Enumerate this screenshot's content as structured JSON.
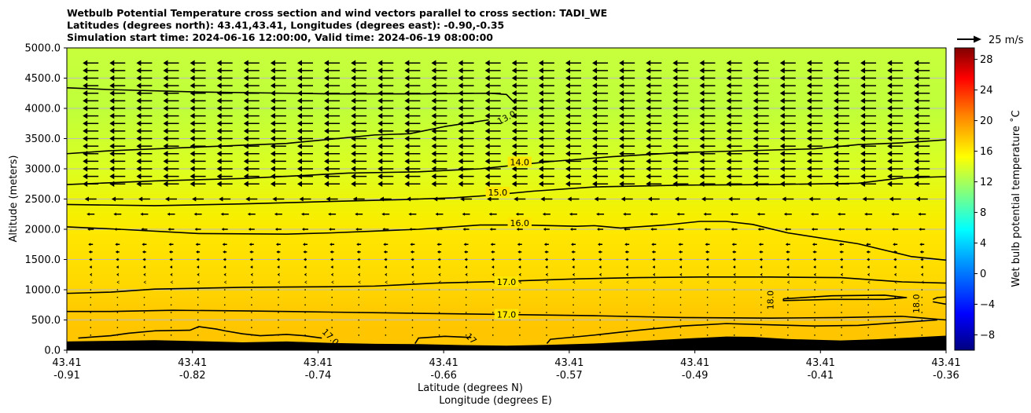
{
  "chart_data": {
    "type": "contour",
    "title_lines": [
      "Wetbulb Potential Temperature cross section and wind vectors parallel to cross section: TADI_WE",
      "Latitudes (degrees north): 43.41,43.41, Longitudes (degrees east): -0.90,-0.35",
      "Simulation start time: 2024-06-16 12:00:00, Valid time: 2024-06-19 08:00:00"
    ],
    "ylabel": "Altitude (meters)",
    "xlabel_lat": "Latitude (degrees N)",
    "xlabel_lon": "Longitude (degrees E)",
    "ylim": [
      0,
      5000
    ],
    "yticks": [
      {
        "value": 0,
        "label": "0.0"
      },
      {
        "value": 500,
        "label": "500.0"
      },
      {
        "value": 1000,
        "label": "1000.0"
      },
      {
        "value": 1500,
        "label": "1500.0"
      },
      {
        "value": 2000,
        "label": "2000.0"
      },
      {
        "value": 2500,
        "label": "2500.0"
      },
      {
        "value": 3000,
        "label": "3000.0"
      },
      {
        "value": 3500,
        "label": "3500.0"
      },
      {
        "value": 4000,
        "label": "4000.0"
      },
      {
        "value": 4500,
        "label": "4500.0"
      },
      {
        "value": 5000,
        "label": "5000.0"
      }
    ],
    "xticks": [
      {
        "lat": "43.41",
        "lon": "-0.91"
      },
      {
        "lat": "43.41",
        "lon": "-0.82"
      },
      {
        "lat": "43.41",
        "lon": "-0.74"
      },
      {
        "lat": "43.41",
        "lon": "-0.66"
      },
      {
        "lat": "43.41",
        "lon": "-0.57"
      },
      {
        "lat": "43.41",
        "lon": "-0.49"
      },
      {
        "lat": "43.41",
        "lon": "-0.41"
      },
      {
        "lat": "43.41",
        "lon": "-0.36"
      }
    ],
    "colorbar": {
      "label": "Wet bulb potential temperature ˚C",
      "range": [
        -10,
        29.5
      ],
      "ticks": [
        -8,
        -4,
        0,
        4,
        8,
        12,
        16,
        20,
        24,
        28
      ],
      "tick_labels": [
        "−8",
        "−4",
        "0",
        "4",
        "8",
        "12",
        "16",
        "20",
        "24",
        "28"
      ]
    },
    "wind_key": {
      "label": "25 m/s",
      "value": 25
    },
    "contour_labels": [
      {
        "text": "13.0",
        "x": 0.5,
        "alt": 3850
      },
      {
        "text": "14.0",
        "x": 0.515,
        "alt": 3110
      },
      {
        "text": "15.0",
        "x": 0.49,
        "alt": 2610
      },
      {
        "text": "16.0",
        "x": 0.515,
        "alt": 2105
      },
      {
        "text": "17.0",
        "x": 0.5,
        "alt": 1130
      },
      {
        "text": "17.0",
        "x": 0.5,
        "alt": 590
      },
      {
        "text": "17.0",
        "x": 0.3,
        "alt": 220
      },
      {
        "text": "17",
        "x": 0.46,
        "alt": 195
      },
      {
        "text": "18.0",
        "x": 0.8,
        "alt": 830
      },
      {
        "text": "18.0",
        "x": 0.966,
        "alt": 770
      }
    ],
    "contours": [
      {
        "level": 13,
        "points": [
          [
            0,
            4340
          ],
          [
            0.05,
            4310
          ],
          [
            0.15,
            4270
          ],
          [
            0.3,
            4240
          ],
          [
            0.4,
            4240
          ],
          [
            0.48,
            4250
          ],
          [
            0.5,
            4230
          ],
          [
            0.51,
            4080
          ]
        ]
      },
      {
        "level": 13,
        "points": [
          [
            0,
            3250
          ],
          [
            0.05,
            3300
          ],
          [
            0.15,
            3360
          ],
          [
            0.25,
            3420
          ],
          [
            0.3,
            3490
          ],
          [
            0.35,
            3560
          ],
          [
            0.39,
            3580
          ],
          [
            0.43,
            3700
          ],
          [
            0.48,
            3810
          ]
        ]
      },
      {
        "level": 14,
        "points": [
          [
            0,
            2740
          ],
          [
            0.1,
            2800
          ],
          [
            0.2,
            2840
          ],
          [
            0.27,
            2890
          ],
          [
            0.32,
            2930
          ],
          [
            0.4,
            2950
          ],
          [
            0.47,
            3000
          ],
          [
            0.55,
            3120
          ],
          [
            0.62,
            3200
          ],
          [
            0.7,
            3270
          ],
          [
            0.8,
            3310
          ],
          [
            0.85,
            3330
          ],
          [
            0.9,
            3400
          ],
          [
            0.95,
            3430
          ],
          [
            1.0,
            3480
          ]
        ]
      },
      {
        "level": 15,
        "points": [
          [
            0,
            2410
          ],
          [
            0.1,
            2390
          ],
          [
            0.2,
            2420
          ],
          [
            0.3,
            2460
          ],
          [
            0.38,
            2490
          ],
          [
            0.44,
            2520
          ],
          [
            0.48,
            2560
          ],
          [
            0.53,
            2630
          ],
          [
            0.6,
            2700
          ],
          [
            0.7,
            2730
          ],
          [
            0.8,
            2740
          ],
          [
            0.9,
            2760
          ],
          [
            0.95,
            2850
          ],
          [
            1.0,
            2870
          ]
        ]
      },
      {
        "level": 16,
        "points": [
          [
            0,
            2040
          ],
          [
            0.06,
            2000
          ],
          [
            0.15,
            1930
          ],
          [
            0.25,
            1920
          ],
          [
            0.3,
            1940
          ],
          [
            0.35,
            1970
          ],
          [
            0.4,
            2000
          ],
          [
            0.47,
            2070
          ],
          [
            0.52,
            2070
          ],
          [
            0.58,
            2050
          ],
          [
            0.6,
            2060
          ],
          [
            0.63,
            2020
          ],
          [
            0.68,
            2070
          ],
          [
            0.72,
            2130
          ],
          [
            0.75,
            2130
          ],
          [
            0.78,
            2080
          ],
          [
            0.82,
            1940
          ],
          [
            0.9,
            1760
          ],
          [
            0.96,
            1550
          ],
          [
            1.0,
            1490
          ]
        ]
      },
      {
        "level": 17,
        "points": [
          [
            0,
            940
          ],
          [
            0.05,
            960
          ],
          [
            0.1,
            1010
          ],
          [
            0.2,
            1040
          ],
          [
            0.3,
            1050
          ],
          [
            0.35,
            1060
          ],
          [
            0.42,
            1110
          ],
          [
            0.5,
            1140
          ],
          [
            0.58,
            1180
          ],
          [
            0.65,
            1200
          ],
          [
            0.72,
            1210
          ],
          [
            0.8,
            1210
          ],
          [
            0.88,
            1200
          ],
          [
            0.95,
            1130
          ],
          [
            1.0,
            1110
          ]
        ]
      },
      {
        "level": 17,
        "points": [
          [
            0,
            640
          ],
          [
            0.05,
            640
          ],
          [
            0.12,
            660
          ],
          [
            0.2,
            650
          ],
          [
            0.3,
            630
          ],
          [
            0.4,
            610
          ],
          [
            0.5,
            590
          ],
          [
            0.6,
            570
          ],
          [
            0.7,
            540
          ],
          [
            0.8,
            530
          ],
          [
            0.88,
            540
          ],
          [
            0.95,
            560
          ],
          [
            0.975,
            530
          ],
          [
            1.0,
            500
          ]
        ]
      },
      {
        "level": 17,
        "points": [
          [
            0.013,
            200
          ],
          [
            0.05,
            240
          ],
          [
            0.07,
            280
          ],
          [
            0.1,
            320
          ],
          [
            0.14,
            330
          ],
          [
            0.15,
            390
          ],
          [
            0.17,
            350
          ],
          [
            0.18,
            320
          ],
          [
            0.2,
            270
          ],
          [
            0.22,
            240
          ],
          [
            0.25,
            260
          ],
          [
            0.27,
            240
          ],
          [
            0.29,
            200
          ]
        ]
      },
      {
        "level": 17,
        "points": [
          [
            0.396,
            110
          ],
          [
            0.4,
            200
          ],
          [
            0.43,
            230
          ],
          [
            0.46,
            210
          ]
        ]
      },
      {
        "level": 17,
        "points": [
          [
            0.546,
            110
          ],
          [
            0.55,
            180
          ],
          [
            0.6,
            250
          ],
          [
            0.65,
            330
          ],
          [
            0.7,
            400
          ],
          [
            0.75,
            440
          ],
          [
            0.8,
            420
          ],
          [
            0.85,
            400
          ],
          [
            0.9,
            410
          ],
          [
            0.95,
            460
          ],
          [
            0.99,
            500
          ]
        ]
      },
      {
        "level": 18,
        "points": [
          [
            0.815,
            850
          ],
          [
            0.87,
            900
          ],
          [
            0.93,
            910
          ],
          [
            0.955,
            870
          ],
          [
            0.93,
            840
          ],
          [
            0.87,
            840
          ],
          [
            0.815,
            820
          ],
          [
            0.815,
            850
          ]
        ]
      },
      {
        "level": 18,
        "points": [
          [
            0.985,
            840
          ],
          [
            0.99,
            870
          ],
          [
            1.0,
            880
          ]
        ]
      },
      {
        "level": 18,
        "points": [
          [
            0.985,
            800
          ],
          [
            1.0,
            760
          ]
        ]
      }
    ],
    "terrain": [
      [
        0,
        145
      ],
      [
        0.05,
        155
      ],
      [
        0.1,
        165
      ],
      [
        0.15,
        150
      ],
      [
        0.2,
        130
      ],
      [
        0.25,
        145
      ],
      [
        0.3,
        120
      ],
      [
        0.35,
        105
      ],
      [
        0.4,
        100
      ],
      [
        0.45,
        85
      ],
      [
        0.5,
        75
      ],
      [
        0.55,
        90
      ],
      [
        0.6,
        110
      ],
      [
        0.65,
        150
      ],
      [
        0.7,
        190
      ],
      [
        0.75,
        225
      ],
      [
        0.78,
        220
      ],
      [
        0.82,
        185
      ],
      [
        0.88,
        160
      ],
      [
        0.92,
        180
      ],
      [
        0.96,
        210
      ],
      [
        1.0,
        240
      ]
    ]
  },
  "colors": {
    "background": "#ffffff",
    "contour": "#000000",
    "terrain": "#000000",
    "grid": "#bdbdbd"
  }
}
